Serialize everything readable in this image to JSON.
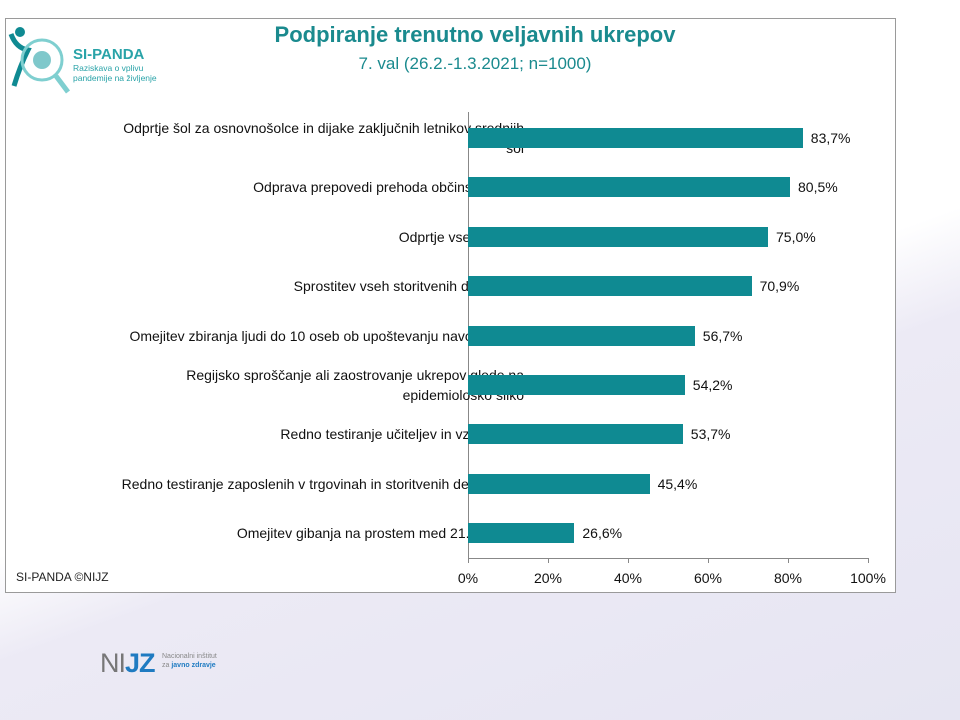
{
  "header": {
    "title": "Podpiranje trenutno veljavnih ukrepov",
    "subtitle": "7. val (26.2.-1.3.2021; n=1000)"
  },
  "logo": {
    "name": "SI-PANDA",
    "tagline": "Raziskava o vplivu pandemije na življenje"
  },
  "credit": "SI-PANDA ©NIJZ",
  "footer_logo": {
    "name_prefix": "NI",
    "name_accent": "JZ",
    "line1": "Nacionalni inštitut",
    "line2_prefix": "za ",
    "line2_accent": "javno zdravje"
  },
  "chart_data": {
    "type": "bar",
    "orientation": "horizontal",
    "title": "Podpiranje trenutno veljavnih ukrepov",
    "subtitle": "7. val (26.2.-1.3.2021; n=1000)",
    "categories": [
      "Odprtje šol za osnovnošolce in dijake zaključnih letnikov srednjih šol",
      "Odprava prepovedi prehoda občinskih meja",
      "Odprtje vseh trgovin",
      "Sprostitev vseh storitvenih dejavnosti",
      "Omejitev zbiranja ljudi do 10 oseb ob upoštevanju navodil NIJZ.",
      "Regijsko sproščanje ali zaostrovanje ukrepov glede na epidemiološko sliko",
      "Redno testiranje učiteljev in vzgojiteljev",
      "Redno testiranje zaposlenih v trgovinah in storitvenih dejavnostih",
      "Omejitev gibanja na prostem med 21. in 6. uro"
    ],
    "values": [
      83.7,
      80.5,
      75.0,
      70.9,
      56.7,
      54.2,
      53.7,
      45.4,
      26.6
    ],
    "value_labels": [
      "83,7%",
      "80,5%",
      "75,0%",
      "70,9%",
      "56,7%",
      "54,2%",
      "53,7%",
      "45,4%",
      "26,6%"
    ],
    "xlim": [
      0,
      100
    ],
    "xticks": [
      "0%",
      "20%",
      "40%",
      "60%",
      "80%",
      "100%"
    ],
    "bar_color": "#0f8a92",
    "grid": false,
    "legend": "none"
  }
}
